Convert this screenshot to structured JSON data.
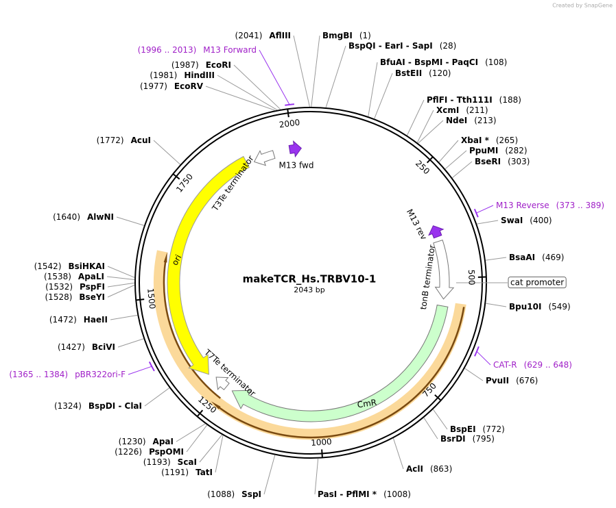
{
  "header": {
    "watermark": "Created by SnapGene"
  },
  "map": {
    "name": "makeTCR_Hs.TRBV10-1",
    "length": "2043 bp",
    "ticks": [
      "250",
      "500",
      "750",
      "1000",
      "1250",
      "1500",
      "1750",
      "2000"
    ],
    "sites": [
      {
        "enzymes": "AflIII",
        "position": "(2041)"
      },
      {
        "enzymes": "BmgBI",
        "position": "(1)"
      },
      {
        "enzymes": "BspQI  -  EarI  -  SapI",
        "position": "(28)"
      },
      {
        "enzymes": "BfuAI  -  BspMI  -  PaqCI",
        "position": "(108)"
      },
      {
        "enzymes": "BstEII",
        "position": "(120)"
      },
      {
        "enzymes": "PflFI  -  Tth111I",
        "position": "(188)"
      },
      {
        "enzymes": "XcmI",
        "position": "(211)"
      },
      {
        "enzymes": "NdeI",
        "position": "(213)"
      },
      {
        "enzymes": "XbaI *",
        "position": "(265)"
      },
      {
        "enzymes": "PpuMI",
        "position": "(282)"
      },
      {
        "enzymes": "BseRI",
        "position": "(303)"
      },
      {
        "enzymes": "SwaI",
        "position": "(400)"
      },
      {
        "enzymes": "BsaAI",
        "position": "(469)"
      },
      {
        "enzymes": "Bpu10I",
        "position": "(549)"
      },
      {
        "enzymes": "PvuII",
        "position": "(676)"
      },
      {
        "enzymes": "BspEI",
        "position": "(772)"
      },
      {
        "enzymes": "BsrDI",
        "position": "(795)"
      },
      {
        "enzymes": "AclI",
        "position": "(863)"
      },
      {
        "enzymes": "PasI  -  PflMI *",
        "position": "(1008)"
      },
      {
        "enzymes": "SspI",
        "position": "(1088)"
      },
      {
        "enzymes": "TatI",
        "position": "(1191)"
      },
      {
        "enzymes": "ScaI",
        "position": "(1193)"
      },
      {
        "enzymes": "PspOMI",
        "position": "(1226)"
      },
      {
        "enzymes": "ApaI",
        "position": "(1230)"
      },
      {
        "enzymes": "BspDI  -  ClaI",
        "position": "(1324)"
      },
      {
        "enzymes": "BciVI",
        "position": "(1427)"
      },
      {
        "enzymes": "HaeII",
        "position": "(1472)"
      },
      {
        "enzymes": "BseYI",
        "position": "(1528)"
      },
      {
        "enzymes": "PspFI",
        "position": "(1532)"
      },
      {
        "enzymes": "ApaLI",
        "position": "(1538)"
      },
      {
        "enzymes": "BsiHKAI",
        "position": "(1542)"
      },
      {
        "enzymes": "AlwNI",
        "position": "(1640)"
      },
      {
        "enzymes": "AcuI",
        "position": "(1772)"
      },
      {
        "enzymes": "EcoRV",
        "position": "(1977)"
      },
      {
        "enzymes": "HindIII",
        "position": "(1981)"
      },
      {
        "enzymes": "EcoRI",
        "position": "(1987)"
      }
    ],
    "primers": [
      {
        "name": "M13 Forward",
        "range": "(1996 .. 2013)"
      },
      {
        "name": "M13 Reverse",
        "range": "(373 .. 389)"
      },
      {
        "name": "CAT-R",
        "range": "(629 .. 648)"
      },
      {
        "name": "pBR322ori-F",
        "range": "(1365 .. 1384)"
      }
    ],
    "features": [
      "ori",
      "CmR",
      "tonB terminator",
      "T3Te terminator",
      "T7Te terminator",
      "M13 fwd",
      "M13 rev",
      "cat promoter"
    ]
  }
}
